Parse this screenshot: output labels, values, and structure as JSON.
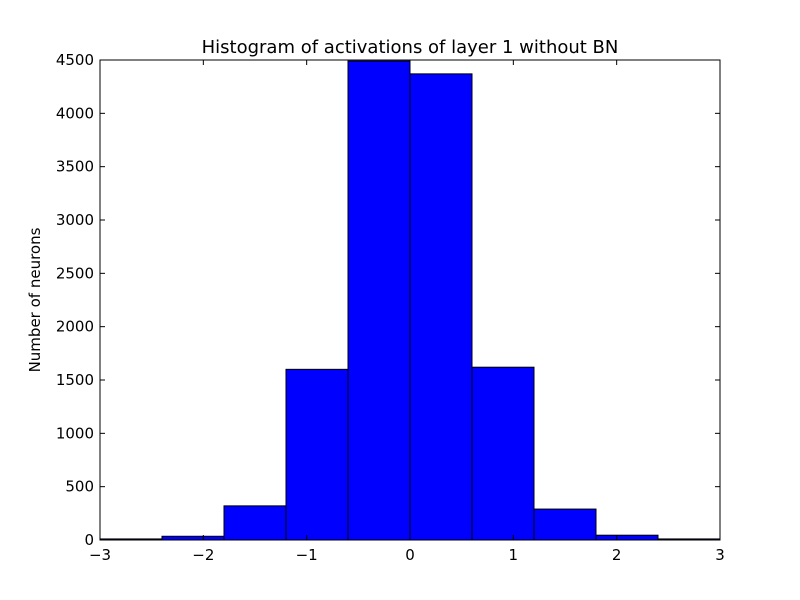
{
  "chart_data": {
    "type": "bar",
    "title": "Histogram of activations of layer 1  without BN",
    "xlabel": "",
    "ylabel": "Number of neurons",
    "xlim": [
      -3,
      3
    ],
    "ylim": [
      0,
      4500
    ],
    "xticks": [
      -3,
      -2,
      -1,
      0,
      1,
      2,
      3
    ],
    "xtick_labels": [
      "−3",
      "−2",
      "−1",
      "0",
      "1",
      "2",
      "3"
    ],
    "yticks": [
      0,
      500,
      1000,
      1500,
      2000,
      2500,
      3000,
      3500,
      4000,
      4500
    ],
    "ytick_labels": [
      "0",
      "500",
      "1000",
      "1500",
      "2000",
      "2500",
      "3000",
      "3500",
      "4000",
      "4500"
    ],
    "bin_edges": [
      -3.0,
      -2.4,
      -1.8,
      -1.2,
      -0.6,
      0.0,
      0.6,
      1.2,
      1.8,
      2.4,
      3.0
    ],
    "values": [
      10,
      35,
      320,
      1600,
      4490,
      4370,
      1620,
      290,
      45,
      10
    ],
    "bar_color": "#0000ff",
    "edge_color": "#000000",
    "grid": false
  }
}
